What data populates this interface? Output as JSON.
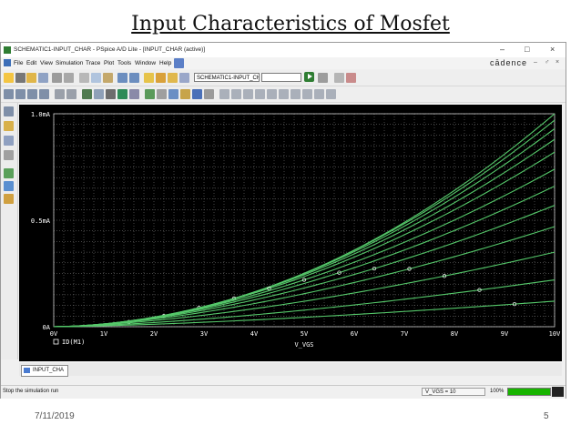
{
  "slide": {
    "title": "Input Characteristics of Mosfet",
    "date": "7/11/2019",
    "page_number": "5"
  },
  "window": {
    "title": "SCHEMATIC1-INPUT_CHAR - PSpice A/D Lite - [INPUT_CHAR (active)]",
    "controls": [
      "–",
      "□",
      "×"
    ],
    "mdi_controls": [
      "–",
      "♂",
      "×"
    ]
  },
  "menu": {
    "items": [
      "File",
      "Edit",
      "View",
      "Simulation",
      "Trace",
      "Plot",
      "Tools",
      "Window",
      "Help"
    ],
    "brand": "cādence"
  },
  "toolbar": {
    "profile_combo": "SCHEMATIC1-INPUT_CHA",
    "run_icon": "play-icon"
  },
  "tabs": [
    {
      "label": "INPUT_CHA"
    }
  ],
  "status": {
    "message": "Stop the simulation run",
    "sweep_value": "V_VGS = 10",
    "percent": "100%",
    "progress_fraction": 1.0
  },
  "colors": {
    "trace": "#55c86a",
    "grid": "#8a8a8a",
    "plot_bg": "#000000",
    "axis_text": "#ffffff",
    "legend_marker": "#ffffff",
    "progress": "#18b400"
  },
  "chart_data": {
    "type": "line",
    "xlabel": "V_VGS",
    "x_ticks": [
      "0V",
      "1V",
      "2V",
      "3V",
      "4V",
      "5V",
      "6V",
      "7V",
      "8V",
      "9V",
      "10V"
    ],
    "y_ticks": [
      "0A",
      "0.5mA",
      "1.0mA"
    ],
    "xlim": [
      0,
      10
    ],
    "ylim": [
      0,
      1.0
    ],
    "y_unit": "mA",
    "grid": true,
    "legend": "bottom-left",
    "legend_entries": [
      "ID(M1)"
    ],
    "family_top_values_mA": [
      1.0,
      0.97,
      0.93,
      0.88,
      0.82,
      0.74,
      0.66,
      0.57,
      0.47,
      0.35,
      0.22,
      0.12
    ],
    "family_exponents": [
      2.0,
      1.95,
      1.9,
      1.85,
      1.8,
      1.75,
      1.7,
      1.65,
      1.6,
      1.55,
      1.5,
      1.45
    ]
  }
}
